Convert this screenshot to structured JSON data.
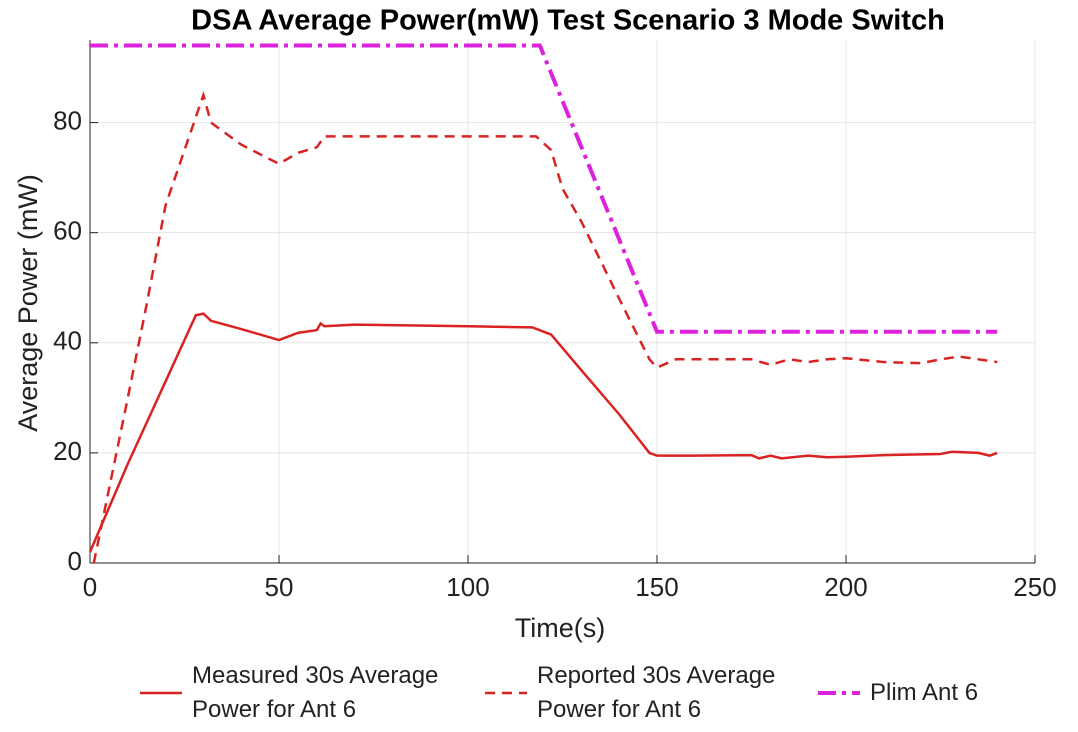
{
  "chart_data": {
    "type": "line",
    "title": "DSA Average Power(mW) Test Scenario 3 Mode Switch",
    "x_label": "Time(s)",
    "y_label": "Average Power (mW)",
    "xlim": [
      0,
      250
    ],
    "xticks": [
      0,
      50,
      100,
      150,
      200,
      250
    ],
    "ylim": [
      0,
      95
    ],
    "yticks": [
      0,
      20,
      40,
      60,
      80
    ],
    "grid": true,
    "legend": "bottom",
    "series": [
      {
        "name": "Measured 30s Average Power for Ant 6",
        "color": "#d92323",
        "dash": "solid",
        "x": [
          0,
          10,
          20,
          28,
          30,
          32,
          40,
          50,
          55,
          60,
          61,
          62,
          70,
          100,
          117,
          122,
          130,
          140,
          148,
          150,
          160,
          175,
          177,
          180,
          183,
          190,
          195,
          200,
          210,
          225,
          228,
          235,
          238,
          240
        ],
        "values": [
          2,
          18,
          33,
          45,
          45.3,
          44,
          42.5,
          40.5,
          41.8,
          42.3,
          43.5,
          43,
          43.3,
          43,
          42.8,
          41.5,
          35,
          27,
          20,
          19.5,
          19.5,
          19.6,
          19,
          19.5,
          19,
          19.5,
          19.2,
          19.3,
          19.6,
          19.8,
          20.2,
          20,
          19.5,
          20
        ]
      },
      {
        "name": "Reported 30s Average Power for Ant 6",
        "color": "#d92323",
        "dash": "dashed",
        "x": [
          1,
          10,
          15,
          20,
          25,
          30,
          32,
          40,
          50,
          55,
          60,
          62,
          70,
          100,
          118,
          122,
          125,
          130,
          140,
          148,
          150,
          155,
          165,
          175,
          180,
          185,
          190,
          195,
          200,
          210,
          220,
          225,
          230,
          240
        ],
        "values": [
          0,
          30,
          47,
          65,
          75,
          85,
          80,
          76,
          72.5,
          74.5,
          75.5,
          77.5,
          77.5,
          77.5,
          77.5,
          75,
          68,
          62,
          48,
          37,
          35.5,
          37,
          37,
          37,
          36,
          37,
          36.5,
          37,
          37.2,
          36.5,
          36.3,
          37,
          37.5,
          36.5
        ]
      },
      {
        "name": "Plim Ant 6",
        "color": "#dd22dd",
        "dash": "dashdot",
        "x": [
          0,
          119,
          150,
          240
        ],
        "values": [
          94,
          94,
          42,
          42
        ]
      }
    ]
  }
}
